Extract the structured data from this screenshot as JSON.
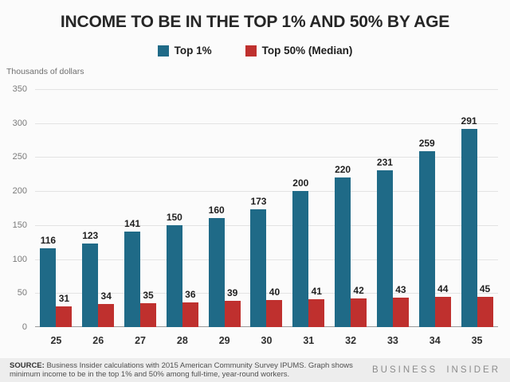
{
  "chart_data": {
    "type": "bar",
    "title": "INCOME TO BE IN THE TOP 1% AND 50% BY AGE",
    "ylabel": "Thousands of dollars",
    "xlabel": "",
    "categories": [
      "25",
      "26",
      "27",
      "28",
      "29",
      "30",
      "31",
      "32",
      "33",
      "34",
      "35"
    ],
    "series": [
      {
        "name": "Top 1%",
        "color": "#1f6a87",
        "values": [
          116,
          123,
          141,
          150,
          160,
          173,
          200,
          220,
          231,
          259,
          291
        ]
      },
      {
        "name": "Top 50% (Median)",
        "color": "#bf302e",
        "values": [
          31,
          34,
          35,
          36,
          39,
          40,
          41,
          42,
          43,
          44,
          45
        ]
      }
    ],
    "ylim": [
      0,
      350
    ],
    "yticks": [
      0,
      50,
      100,
      150,
      200,
      250,
      300,
      350
    ],
    "grid": true,
    "legend_position": "top-center"
  },
  "colors": {
    "background": "#fbfbfb",
    "footer_band": "#ededed",
    "gridline": "#e3e3e3",
    "axis_line": "#9b9b9b"
  },
  "footer": {
    "source_label": "SOURCE:",
    "source_text": " Business Insider calculations with 2015 American Community Survey IPUMS. Graph shows minimum income to be in the top 1% and 50% among full-time, year-round workers.",
    "brand": "BUSINESS INSIDER"
  }
}
